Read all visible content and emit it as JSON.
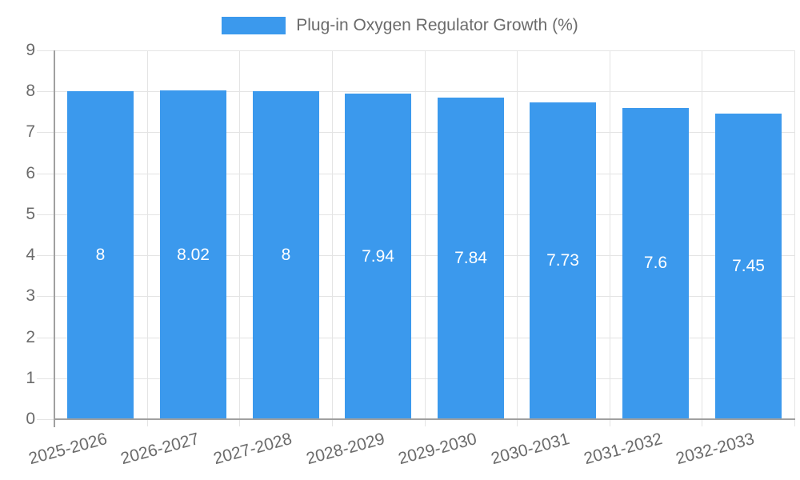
{
  "colors": {
    "bar": "#3B99ED",
    "grid": "#E4E4E4",
    "axis": "#A0A0A0",
    "text": "#6B6B6B",
    "bar_label": "#FFFFFF",
    "background": "#FFFFFF"
  },
  "legend": {
    "position": "top",
    "items": [
      {
        "label": "Plug-in Oxygen Regulator Growth (%)",
        "swatch_color": "#3B99ED"
      }
    ]
  },
  "chart_data": {
    "type": "bar",
    "title": "Plug-in Oxygen Regulator Growth (%)",
    "series_name": "Plug-in Oxygen Regulator Growth (%)",
    "categories": [
      "2025-2026",
      "2026-2027",
      "2027-2028",
      "2028-2029",
      "2029-2030",
      "2030-2031",
      "2031-2032",
      "2032-2033"
    ],
    "values": [
      8,
      8.02,
      8,
      7.94,
      7.84,
      7.73,
      7.6,
      7.45
    ],
    "value_labels": [
      "8",
      "8.02",
      "8",
      "7.94",
      "7.84",
      "7.73",
      "7.6",
      "7.45"
    ],
    "xlabel": "",
    "ylabel": "",
    "ylim": [
      0,
      9
    ],
    "yticks": [
      0,
      1,
      2,
      3,
      4,
      5,
      6,
      7,
      8,
      9
    ],
    "grid": true,
    "legend_position": "top",
    "x_label_rotation_deg": -15,
    "bar_label_position": "center"
  }
}
